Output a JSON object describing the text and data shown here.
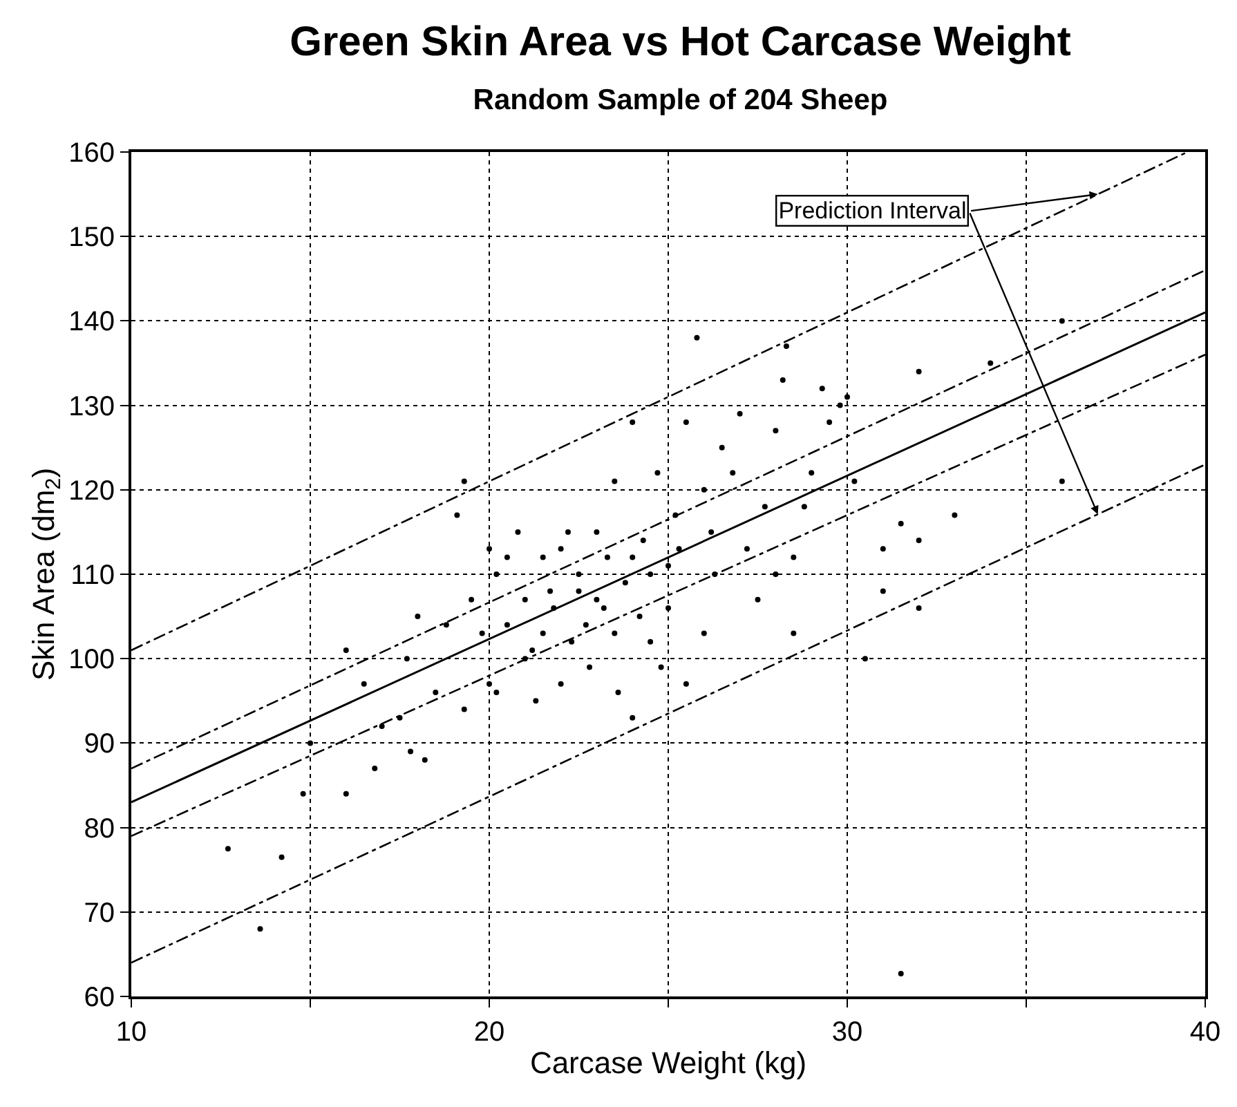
{
  "chart_data": {
    "type": "scatter",
    "title": "Green Skin Area vs Hot Carcase Weight",
    "subtitle": "Random Sample of 204 Sheep",
    "xlabel": "Carcase Weight (kg)",
    "ylabel": "Skin Area (dm$_{2}$)",
    "xlim": [
      10,
      40
    ],
    "ylim": [
      60,
      160
    ],
    "xticks": [
      10,
      {
        "value": 15,
        "label": null
      },
      20,
      {
        "value": 25,
        "label": null
      },
      30,
      {
        "value": 35,
        "label": null
      },
      40
    ],
    "yticks": [
      60,
      70,
      80,
      90,
      100,
      110,
      120,
      130,
      140,
      150,
      160
    ],
    "grid": true,
    "annotations": [
      {
        "text": "Prediction Interval",
        "x": 37,
        "y": 155
      }
    ],
    "series": [
      {
        "type": "scatter",
        "marker": "circle",
        "color": "#000000",
        "x": [
          12.7,
          13.6,
          14.2,
          14.8,
          15.0,
          16.0,
          16.0,
          16.5,
          16.8,
          17.0,
          17.5,
          17.7,
          17.8,
          18.0,
          18.2,
          18.5,
          18.8,
          19.1,
          19.3,
          19.3,
          19.5,
          19.8,
          20.0,
          20.0,
          20.2,
          20.2,
          20.5,
          20.5,
          20.8,
          21.0,
          21.0,
          21.2,
          21.3,
          21.5,
          21.5,
          21.7,
          21.8,
          22.0,
          22.0,
          22.2,
          22.3,
          22.5,
          22.5,
          22.7,
          22.8,
          23.0,
          23.0,
          23.2,
          23.3,
          23.5,
          23.5,
          23.6,
          23.8,
          24.0,
          24.0,
          24.0,
          24.2,
          24.3,
          24.5,
          24.5,
          24.7,
          24.8,
          25.0,
          25.0,
          25.2,
          25.3,
          25.5,
          25.5,
          25.8,
          26.0,
          26.0,
          26.2,
          26.3,
          26.5,
          26.8,
          27.0,
          27.2,
          27.5,
          27.7,
          28.0,
          28.0,
          28.2,
          28.3,
          28.5,
          28.5,
          28.8,
          29.0,
          29.3,
          29.5,
          29.8,
          30.0,
          30.2,
          30.5,
          31.0,
          31.0,
          31.5,
          32.0,
          32.0,
          32.0,
          33.0,
          34.0,
          36.0,
          36.0,
          31.5
        ],
        "values": [
          77.5,
          68,
          76.5,
          84,
          90,
          84,
          101,
          97,
          87,
          92,
          93,
          100,
          89,
          105,
          88,
          96,
          104,
          117,
          121,
          94,
          107,
          103,
          113,
          97,
          96,
          110,
          104,
          112,
          115,
          107,
          100,
          101,
          95,
          112,
          103,
          108,
          106,
          113,
          97,
          115,
          102,
          108,
          110,
          104,
          99,
          115,
          107,
          106,
          112,
          121,
          103,
          96,
          109,
          112,
          128,
          93,
          105,
          114,
          110,
          102,
          122,
          99,
          111,
          106,
          117,
          113,
          128,
          97,
          138,
          120,
          103,
          115,
          110,
          125,
          122,
          129,
          113,
          107,
          118,
          127,
          110,
          133,
          137,
          112,
          103,
          118,
          122,
          132,
          128,
          130,
          131,
          121,
          100,
          108,
          113,
          116,
          114,
          134,
          106,
          117,
          135,
          140,
          121,
          62.7
        ]
      },
      {
        "type": "line",
        "line_style": "solid",
        "marker": "none",
        "color": "#000000",
        "x": [
          10,
          40
        ],
        "values": [
          83,
          141
        ]
      },
      {
        "type": "line",
        "line_style": "dashed",
        "marker": "none",
        "color": "#000000",
        "x": [
          10,
          40
        ],
        "values": [
          87,
          146
        ]
      },
      {
        "type": "line",
        "line_style": "dashed",
        "marker": "none",
        "color": "#000000",
        "x": [
          10,
          40
        ],
        "values": [
          79,
          136
        ]
      },
      {
        "type": "line",
        "line_style": "dashed",
        "marker": "none",
        "color": "#000000",
        "x": [
          10,
          39.5
        ],
        "values": [
          101,
          160
        ]
      },
      {
        "type": "line",
        "line_style": "dashed",
        "marker": "none",
        "color": "#000000",
        "x": [
          10,
          40
        ],
        "values": [
          64,
          123
        ]
      }
    ]
  }
}
